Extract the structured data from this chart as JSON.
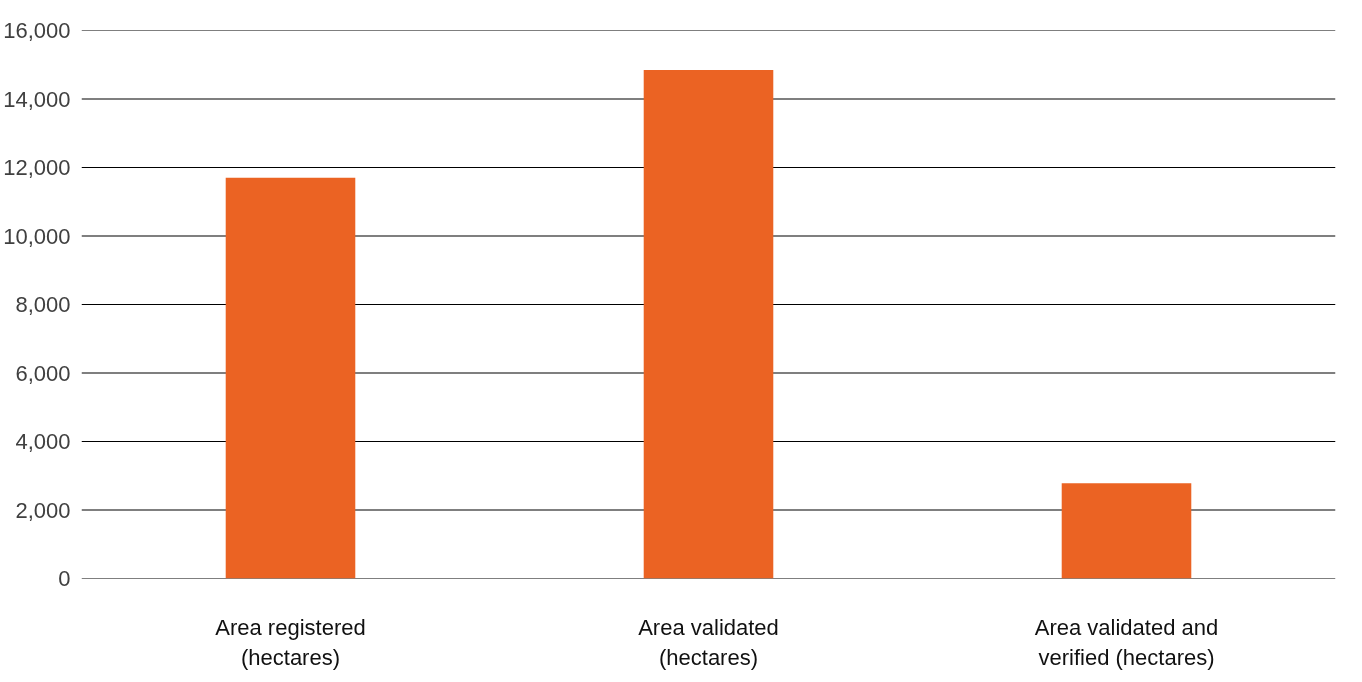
{
  "chart_data": {
    "type": "bar",
    "categories": [
      "Area registered (hectares)",
      "Area validated (hectares)",
      "Area validated and verified (hectares)"
    ],
    "values": [
      11700,
      14850,
      2780
    ],
    "color": "#eb6323",
    "ylim": [
      0,
      16000
    ],
    "yticks": [
      {
        "value": 0,
        "label": "0"
      },
      {
        "value": 2000,
        "label": "2,000"
      },
      {
        "value": 4000,
        "label": "4,000"
      },
      {
        "value": 6000,
        "label": "6,000"
      },
      {
        "value": 8000,
        "label": "8,000"
      },
      {
        "value": 10000,
        "label": "10,000"
      },
      {
        "value": 12000,
        "label": "12,000"
      },
      {
        "value": 14000,
        "label": "14,000"
      },
      {
        "value": 16000,
        "label": "16,000"
      }
    ],
    "grid": "y"
  }
}
